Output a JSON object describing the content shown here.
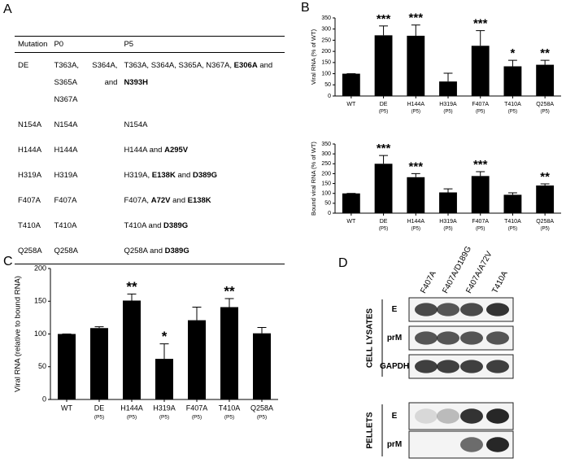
{
  "panel_labels": [
    "A",
    "B",
    "C",
    "D"
  ],
  "table": {
    "headers": [
      "Mutation",
      "P0",
      "P5"
    ],
    "rows": [
      [
        "DE",
        "T363A, S364A, S365A and N367A",
        [
          {
            "text": "T363A, S364A, S365A, N367A, ",
            "bold": false
          },
          {
            "text": "E306A",
            "bold": true
          },
          {
            "text": " and ",
            "bold": false
          },
          {
            "text": "N393H",
            "bold": true
          }
        ]
      ],
      [
        "N154A",
        "N154A",
        [
          {
            "text": "N154A",
            "bold": false
          }
        ]
      ],
      [
        "H144A",
        "H144A",
        [
          {
            "text": "H144A and ",
            "bold": false
          },
          {
            "text": "A295V",
            "bold": true
          }
        ]
      ],
      [
        "H319A",
        "H319A",
        [
          {
            "text": "H319A, ",
            "bold": false
          },
          {
            "text": "E138K",
            "bold": true
          },
          {
            "text": " and ",
            "bold": false
          },
          {
            "text": "D389G",
            "bold": true
          }
        ]
      ],
      [
        "F407A",
        "F407A",
        [
          {
            "text": "F407A, ",
            "bold": false
          },
          {
            "text": "A72V",
            "bold": true
          },
          {
            "text": " and ",
            "bold": false
          },
          {
            "text": "E138K",
            "bold": true
          }
        ]
      ],
      [
        "T410A",
        "T410A",
        [
          {
            "text": "T410A and ",
            "bold": false
          },
          {
            "text": "D389G",
            "bold": true
          }
        ]
      ],
      [
        "Q258A",
        "Q258A",
        [
          {
            "text": "Q258A and ",
            "bold": false
          },
          {
            "text": "D389G",
            "bold": true
          }
        ]
      ]
    ]
  },
  "chart_data": [
    {
      "type": "bar",
      "y_label": "Viral RNA (% of WT)",
      "color": "#000000",
      "categories": [
        "WT",
        "DE",
        "H144A",
        "H319A",
        "F407A",
        "T410A",
        "Q258A"
      ],
      "category_notes": [
        null,
        "(P5)",
        "(P5)",
        "(P5)",
        "(P5)",
        "(P5)",
        "(P5)"
      ],
      "values": [
        100,
        272,
        270,
        65,
        225,
        133,
        140
      ],
      "errors": [
        0,
        42,
        48,
        37,
        68,
        27,
        20
      ],
      "significance": [
        null,
        "***",
        "***",
        null,
        "***",
        "*",
        "**"
      ],
      "ylim": [
        0,
        350
      ],
      "yticks": [
        0,
        50,
        100,
        150,
        200,
        250,
        300,
        350
      ]
    },
    {
      "type": "bar",
      "y_label": "Bound viral RNA (% of WT)",
      "color": "#000000",
      "categories": [
        "WT",
        "DE",
        "H144A",
        "H319A",
        "F407A",
        "T410A",
        "Q258A"
      ],
      "category_notes": [
        null,
        "(P5)",
        "(P5)",
        "(P5)",
        "(P5)",
        "(P5)",
        "(P5)"
      ],
      "values": [
        100,
        250,
        182,
        105,
        188,
        93,
        140
      ],
      "errors": [
        0,
        42,
        18,
        18,
        22,
        10,
        8
      ],
      "significance": [
        null,
        "***",
        "***",
        null,
        "***",
        null,
        "**"
      ],
      "ylim": [
        0,
        350
      ],
      "yticks": [
        0,
        50,
        100,
        150,
        200,
        250,
        300,
        350
      ]
    },
    {
      "type": "bar",
      "y_label": "Viral RNA (relative to bound RNA)",
      "color": "#000000",
      "categories": [
        "WT",
        "DE",
        "H144A",
        "H319A",
        "F407A",
        "T410A",
        "Q258A"
      ],
      "category_notes": [
        null,
        "(P5)",
        "(P5)",
        "(P5)",
        "(P5)",
        "(P5)",
        "(P5)"
      ],
      "values": [
        100,
        109,
        151,
        62,
        121,
        141,
        101
      ],
      "errors": [
        0,
        2,
        10,
        23,
        20,
        13,
        9
      ],
      "significance": [
        null,
        null,
        "**",
        "*",
        null,
        "**",
        null
      ],
      "ylim": [
        0,
        200
      ],
      "yticks": [
        0,
        50,
        100,
        150,
        200
      ]
    }
  ],
  "blot": {
    "lanes": [
      "F407A",
      "F407A/D189G",
      "F407A/A72V",
      "T410A"
    ],
    "groups": [
      {
        "name": "CELL LYSATES",
        "rows": [
          "E",
          "prM",
          "GAPDH"
        ]
      },
      {
        "name": "PELLETS",
        "rows": [
          "E",
          "prM"
        ]
      }
    ]
  }
}
